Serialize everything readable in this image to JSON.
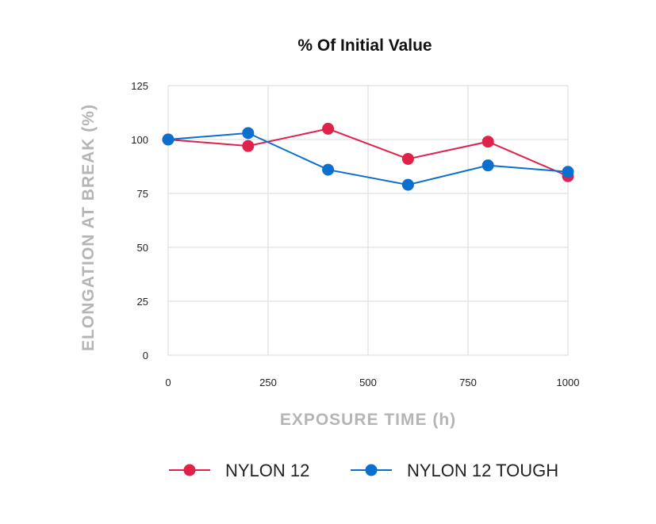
{
  "chart_data": {
    "type": "line",
    "title": "% Of Initial Value",
    "xlabel": "EXPOSURE TIME (h)",
    "ylabel": "ELONGATION AT BREAK (%)",
    "xlim": [
      0,
      1000
    ],
    "ylim": [
      0,
      125
    ],
    "xticks": [
      0,
      250,
      500,
      750,
      1000
    ],
    "yticks": [
      0,
      25,
      50,
      75,
      100,
      125
    ],
    "grid": true,
    "legend_placement": "bottom",
    "x": [
      0,
      200,
      400,
      600,
      800,
      1000
    ],
    "series": [
      {
        "name": "NYLON 12",
        "color": "#e0224a",
        "values": [
          100,
          97,
          105,
          91,
          99,
          83
        ]
      },
      {
        "name": "NYLON 12 TOUGH",
        "color": "#0a6fcf",
        "values": [
          100,
          103,
          86,
          79,
          88,
          85
        ]
      }
    ]
  }
}
